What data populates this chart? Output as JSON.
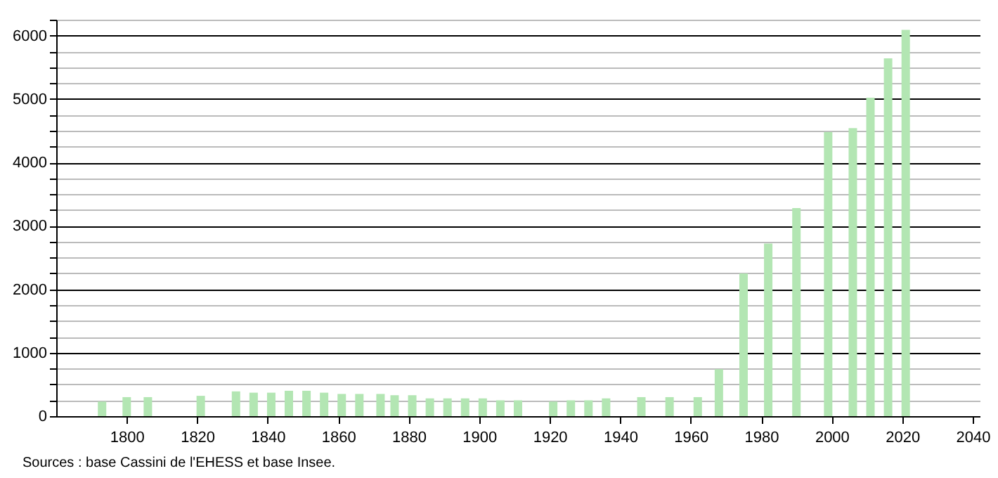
{
  "chart_data": {
    "type": "bar",
    "annotations": [
      "Sources : base Cassini de l'EHESS et base Insee."
    ],
    "x": [
      1793,
      1800,
      1806,
      1821,
      1831,
      1836,
      1841,
      1846,
      1851,
      1856,
      1861,
      1866,
      1872,
      1876,
      1881,
      1886,
      1891,
      1896,
      1901,
      1906,
      1911,
      1921,
      1926,
      1931,
      1936,
      1946,
      1954,
      1962,
      1968,
      1975,
      1982,
      1990,
      1999,
      2006,
      2011,
      2016,
      2021
    ],
    "values": [
      230,
      300,
      300,
      320,
      390,
      370,
      370,
      400,
      400,
      370,
      350,
      350,
      350,
      330,
      330,
      280,
      280,
      280,
      280,
      250,
      250,
      230,
      250,
      250,
      280,
      300,
      300,
      300,
      740,
      2250,
      2720,
      3280,
      4480,
      4540,
      5020,
      5640,
      6090
    ],
    "color": "#b3e6b3",
    "xlim": [
      1780,
      2042
    ],
    "xticks": [
      1800,
      1820,
      1840,
      1860,
      1880,
      1900,
      1920,
      1940,
      1960,
      1980,
      2000,
      2020,
      2040
    ],
    "ylim": [
      0,
      6250
    ],
    "yticks": [
      0,
      {
        "value": 250,
        "label": null
      },
      {
        "value": 500,
        "label": null
      },
      {
        "value": 750,
        "label": null
      },
      1000,
      {
        "value": 1250,
        "label": null
      },
      {
        "value": 1500,
        "label": null
      },
      {
        "value": 1750,
        "label": null
      },
      2000,
      {
        "value": 2250,
        "label": null
      },
      {
        "value": 2500,
        "label": null
      },
      {
        "value": 2750,
        "label": null
      },
      3000,
      {
        "value": 3250,
        "label": null
      },
      {
        "value": 3500,
        "label": null
      },
      {
        "value": 3750,
        "label": null
      },
      4000,
      {
        "value": 4250,
        "label": null
      },
      {
        "value": 4500,
        "label": null
      },
      {
        "value": 4750,
        "label": null
      },
      5000,
      {
        "value": 5250,
        "label": null
      },
      {
        "value": 5500,
        "label": null
      },
      {
        "value": 5750,
        "label": null
      },
      6000,
      {
        "value": 6250,
        "label": null
      }
    ],
    "grid": "y"
  }
}
